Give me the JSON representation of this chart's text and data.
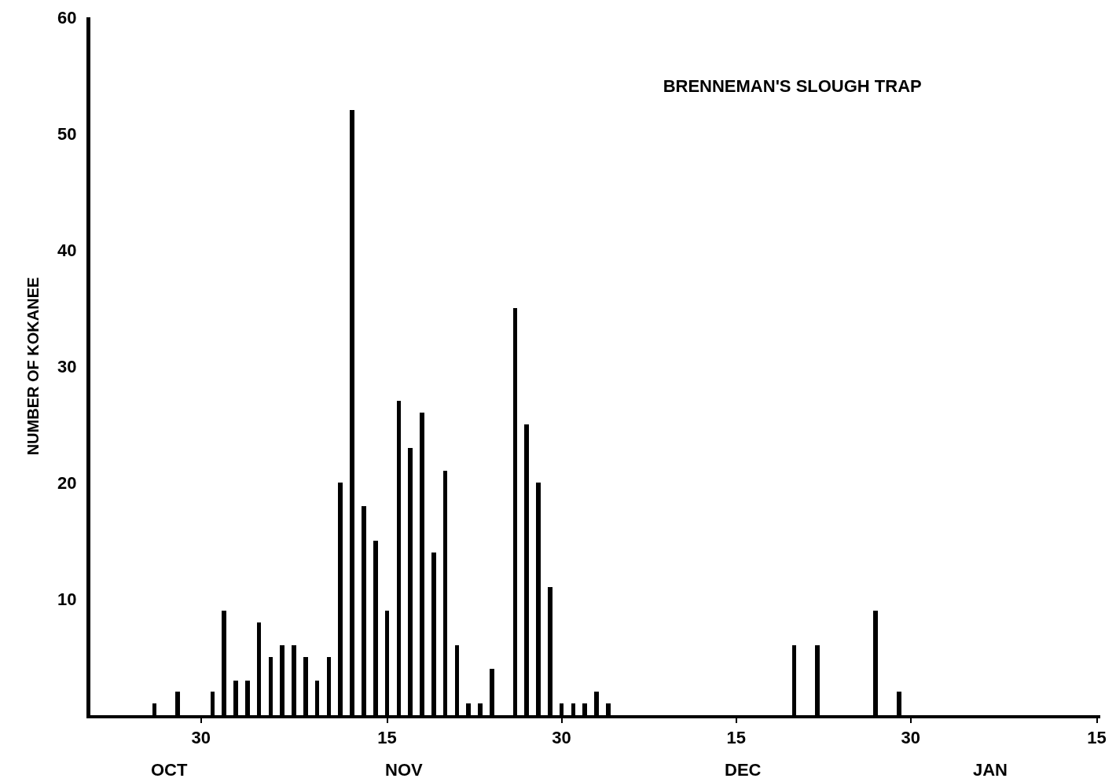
{
  "chart_data": {
    "type": "bar",
    "title": "BRENNEMAN'S SLOUGH TRAP",
    "ylabel": "NUMBER OF KOKANEE",
    "categories": [
      null,
      null,
      null,
      null,
      null,
      null,
      null,
      null,
      null,
      "30",
      null,
      null,
      null,
      null,
      null,
      null,
      null,
      null,
      null,
      null,
      null,
      null,
      null,
      null,
      null,
      "15",
      null,
      null,
      null,
      null,
      null,
      null,
      null,
      null,
      null,
      null,
      null,
      null,
      null,
      null,
      "30",
      null,
      null,
      null,
      null,
      null,
      null,
      null,
      null,
      null,
      null,
      null,
      null,
      null,
      null,
      "15",
      null,
      null,
      null,
      null,
      null,
      null,
      null,
      null,
      null,
      null,
      null,
      null,
      null,
      null,
      "30",
      null,
      null,
      null,
      null,
      null,
      null,
      null,
      null,
      null,
      null,
      null,
      null,
      null,
      null,
      null,
      "15"
    ],
    "values": [
      null,
      null,
      null,
      null,
      null,
      1,
      null,
      2,
      null,
      null,
      2,
      9,
      3,
      3,
      8,
      5,
      6,
      6,
      5,
      3,
      5,
      20,
      52,
      18,
      15,
      9,
      27,
      23,
      26,
      14,
      21,
      6,
      1,
      1,
      4,
      null,
      35,
      25,
      20,
      11,
      1,
      1,
      1,
      2,
      1,
      null,
      null,
      null,
      null,
      null,
      null,
      null,
      null,
      null,
      null,
      null,
      null,
      null,
      null,
      null,
      6,
      null,
      6,
      null,
      null,
      null,
      null,
      9,
      null,
      2,
      null,
      null,
      null,
      null,
      null,
      null,
      null,
      null,
      null,
      null,
      null,
      null,
      null,
      null,
      null,
      null,
      null
    ],
    "color": "#000000",
    "ylim": [
      0,
      60
    ],
    "yticks": [
      10,
      20,
      30,
      40,
      50,
      60
    ],
    "annotations": [
      "OCT",
      "NOV",
      "DEC",
      "JAN"
    ],
    "grid": false
  }
}
